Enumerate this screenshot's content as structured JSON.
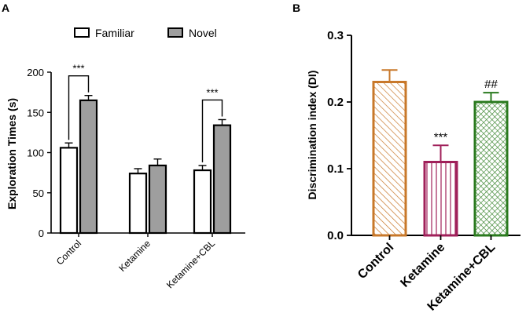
{
  "chart_data": [
    {
      "panel": "A",
      "type": "bar",
      "categories": [
        "Control",
        "Ketamine",
        "Ketamine+CBL"
      ],
      "series": [
        {
          "name": "Familiar",
          "values": [
            106,
            74,
            78
          ],
          "errors": [
            6,
            6,
            6
          ],
          "color": "#ffffff"
        },
        {
          "name": "Novel",
          "values": [
            165,
            84,
            134
          ],
          "errors": [
            6,
            8,
            7
          ],
          "color": "#9e9e9e"
        }
      ],
      "ylabel": "Exploration Times (s)",
      "ylim": [
        0,
        200
      ],
      "yticks": [
        0,
        50,
        100,
        150,
        200
      ],
      "annotations": [
        {
          "category": "Control",
          "text": "***"
        },
        {
          "category": "Ketamine+CBL",
          "text": "***"
        }
      ]
    },
    {
      "panel": "B",
      "type": "bar",
      "categories": [
        "Control",
        "Ketamine",
        "Ketamine+CBL"
      ],
      "values": [
        0.23,
        0.11,
        0.2
      ],
      "errors": [
        0.018,
        0.025,
        0.014
      ],
      "colors": [
        "#c8782a",
        "#a0205a",
        "#2a7a1e"
      ],
      "ylabel": "Discrimination index (DI)",
      "ylim": [
        0,
        0.3
      ],
      "yticks": [
        "0.0",
        "0.1",
        "0.2",
        "0.3"
      ],
      "annotations": [
        {
          "category": "Ketamine",
          "text": "***"
        },
        {
          "category": "Ketamine+CBL",
          "text": "##"
        }
      ]
    }
  ]
}
